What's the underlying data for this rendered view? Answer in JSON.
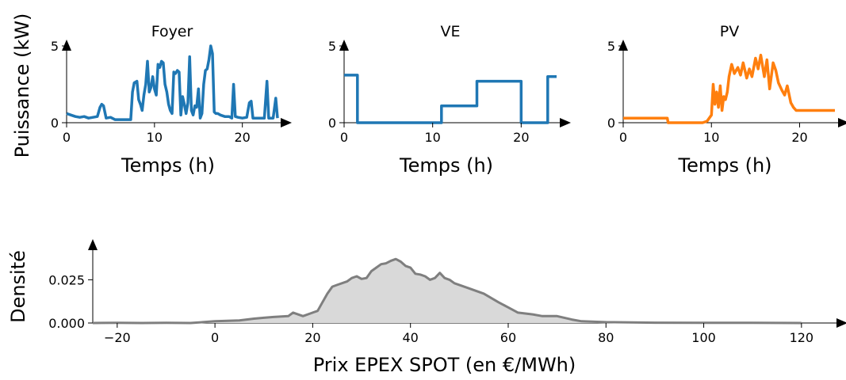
{
  "chart_data": [
    {
      "type": "line",
      "title": "Foyer",
      "xlabel": "Temps (h)",
      "ylabel": "Puissance (kW)",
      "xlim": [
        0,
        24
      ],
      "ylim": [
        0,
        5
      ],
      "xticks": [
        "0",
        "10",
        "20"
      ],
      "yticks": [
        "0",
        "5"
      ],
      "color": "#1f77b4",
      "x": [
        0,
        0.5,
        1,
        1.5,
        2,
        2.5,
        3,
        3.5,
        3.8,
        4,
        4.2,
        4.5,
        5,
        5.5,
        6,
        6.5,
        7,
        7.3,
        7.5,
        7.7,
        8,
        8.2,
        8.4,
        8.6,
        8.8,
        9,
        9.2,
        9.4,
        9.6,
        9.8,
        10,
        10.2,
        10.4,
        10.6,
        10.8,
        11,
        11.2,
        11.4,
        11.6,
        11.8,
        12,
        12.2,
        12.4,
        12.6,
        12.8,
        13,
        13.2,
        13.4,
        13.6,
        13.8,
        14,
        14.2,
        14.4,
        14.6,
        14.8,
        15,
        15.2,
        15.4,
        15.6,
        15.8,
        16,
        16.2,
        16.4,
        16.6,
        16.8,
        17,
        17.2,
        17.5,
        18,
        18.5,
        18.8,
        19,
        19.2,
        19.5,
        20,
        20.5,
        20.8,
        21,
        21.2,
        21.5,
        22,
        22.5,
        22.8,
        23,
        23.2,
        23.5,
        23.8,
        24
      ],
      "values": [
        0.6,
        0.5,
        0.4,
        0.35,
        0.4,
        0.3,
        0.35,
        0.4,
        1.0,
        1.2,
        1.1,
        0.3,
        0.35,
        0.2,
        0.2,
        0.2,
        0.2,
        0.2,
        2.0,
        2.6,
        2.7,
        1.5,
        1.2,
        0.8,
        1.8,
        2.5,
        4.0,
        2.0,
        2.3,
        3.0,
        2.2,
        1.8,
        3.8,
        3.6,
        4.0,
        3.9,
        2.5,
        2.0,
        1.2,
        0.8,
        0.6,
        3.3,
        3.2,
        3.4,
        3.3,
        0.5,
        1.7,
        1.2,
        0.6,
        1.3,
        4.3,
        0.8,
        0.5,
        1.1,
        1.0,
        2.2,
        0.3,
        0.6,
        2.5,
        3.4,
        3.5,
        4.1,
        5.0,
        4.5,
        0.7,
        0.6,
        0.6,
        0.5,
        0.4,
        0.4,
        0.3,
        2.5,
        0.4,
        0.35,
        0.3,
        0.35,
        1.3,
        1.4,
        0.3,
        0.3,
        0.3,
        0.3,
        2.7,
        0.3,
        0.3,
        0.3,
        1.6,
        0.3
      ]
    },
    {
      "type": "line",
      "title": "VE",
      "xlabel": "Temps (h)",
      "xlim": [
        0,
        24
      ],
      "ylim": [
        0,
        5
      ],
      "xticks": [
        "0",
        "10",
        "20"
      ],
      "yticks": [
        "0",
        "5"
      ],
      "color": "#1f77b4",
      "x": [
        0,
        1.5,
        1.5,
        11,
        11,
        15,
        15,
        20,
        20,
        23,
        23,
        24
      ],
      "values": [
        3.1,
        3.1,
        0,
        0,
        1.1,
        1.1,
        2.7,
        2.7,
        0,
        0,
        3.0,
        3.0
      ]
    },
    {
      "type": "line",
      "title": "PV",
      "xlabel": "Temps (h)",
      "xlim": [
        0,
        24
      ],
      "ylim": [
        0,
        5
      ],
      "xticks": [
        "0",
        "10",
        "20"
      ],
      "yticks": [
        "0",
        "5"
      ],
      "color": "#ff7f0e",
      "x": [
        0,
        5,
        5.1,
        8,
        9,
        9.5,
        10,
        10.2,
        10.4,
        10.6,
        10.8,
        11,
        11.2,
        11.4,
        11.6,
        11.8,
        12,
        12.3,
        12.6,
        13,
        13.3,
        13.6,
        14,
        14.3,
        14.6,
        15,
        15.3,
        15.6,
        16,
        16.3,
        16.6,
        17,
        17.3,
        17.6,
        18,
        18.3,
        18.6,
        19,
        19.3,
        19.6,
        20,
        20.5,
        21,
        22,
        24
      ],
      "values": [
        0.3,
        0.3,
        0,
        0,
        0,
        0.1,
        0.5,
        2.5,
        1.2,
        2.0,
        1.0,
        2.4,
        0.8,
        1.7,
        1.5,
        2.0,
        3.0,
        3.8,
        3.2,
        3.6,
        3.1,
        3.9,
        2.9,
        3.5,
        3.0,
        4.2,
        3.5,
        4.4,
        3.0,
        4.1,
        2.2,
        3.9,
        3.4,
        2.6,
        2.1,
        1.8,
        2.4,
        1.3,
        1.0,
        0.8,
        0.8,
        0.8,
        0.8,
        0.8,
        0.8
      ]
    },
    {
      "type": "area",
      "xlabel": "Prix EPEX SPOT (en €/MWh)",
      "ylabel": "Densité",
      "xlim": [
        -25,
        127
      ],
      "ylim": [
        0,
        0.038
      ],
      "xticks": [
        "−20",
        "0",
        "20",
        "40",
        "60",
        "80",
        "100",
        "120"
      ],
      "yticks": [
        "0.000",
        "0.025"
      ],
      "color": "#7f7f7f",
      "fill": "#d9d9d9",
      "x": [
        -25,
        -20,
        -15,
        -10,
        -5,
        0,
        5,
        8,
        10,
        12,
        15,
        16,
        18,
        20,
        21,
        22,
        23,
        24,
        25,
        27,
        28,
        29,
        30,
        31,
        32,
        33,
        34,
        35,
        36,
        37,
        38,
        39,
        40,
        41,
        42,
        43,
        44,
        45,
        46,
        47,
        48,
        49,
        50,
        52,
        55,
        58,
        60,
        62,
        65,
        67,
        70,
        73,
        75,
        80,
        85,
        90,
        100,
        110,
        120
      ],
      "values": [
        0,
        0.0001,
        0,
        0.0001,
        0,
        0.001,
        0.0015,
        0.0025,
        0.003,
        0.0035,
        0.004,
        0.006,
        0.004,
        0.006,
        0.007,
        0.012,
        0.017,
        0.021,
        0.022,
        0.024,
        0.026,
        0.027,
        0.0255,
        0.026,
        0.03,
        0.032,
        0.034,
        0.0345,
        0.036,
        0.037,
        0.0355,
        0.033,
        0.032,
        0.0285,
        0.028,
        0.027,
        0.025,
        0.026,
        0.029,
        0.026,
        0.025,
        0.023,
        0.022,
        0.02,
        0.017,
        0.012,
        0.009,
        0.006,
        0.005,
        0.004,
        0.004,
        0.002,
        0.001,
        0.0005,
        0.0003,
        0.0002,
        0.0001,
        0.0001,
        0
      ]
    }
  ]
}
